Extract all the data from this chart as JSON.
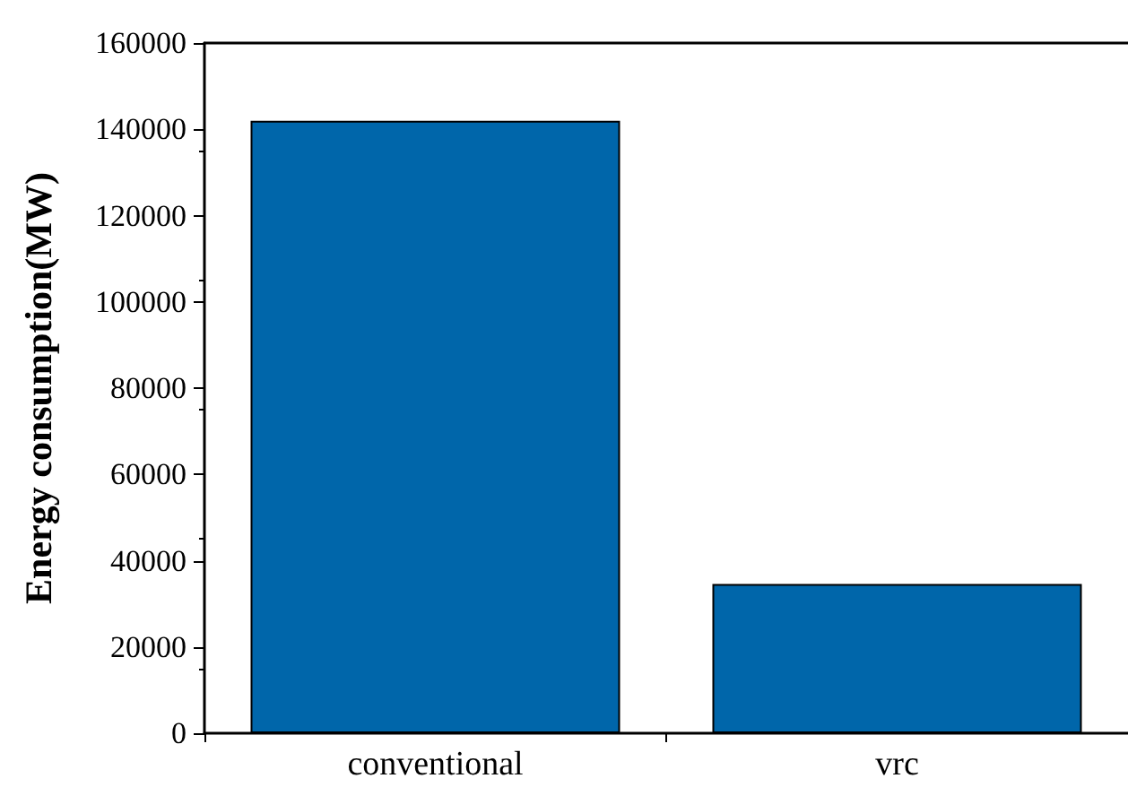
{
  "chart_data": {
    "type": "bar",
    "ylabel": "Energy consumption(MW)",
    "categories": [
      "conventional",
      "vrc"
    ],
    "values": [
      142000,
      34600
    ],
    "color": "#0066aa",
    "ylim": [
      0,
      160000
    ],
    "yticks": [
      0,
      20000,
      40000,
      60000,
      80000,
      100000,
      120000,
      140000,
      160000
    ],
    "grid": false
  }
}
